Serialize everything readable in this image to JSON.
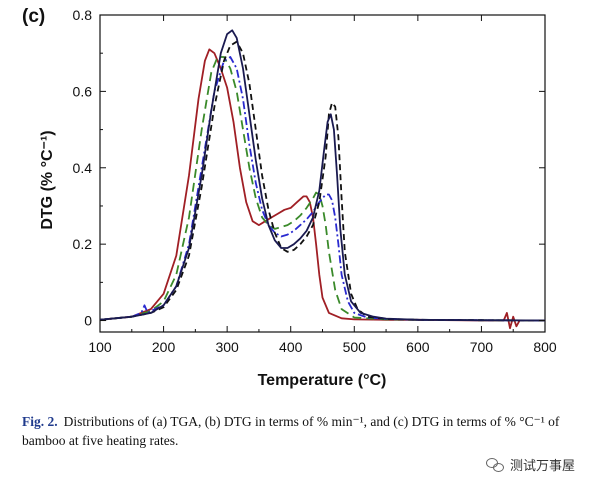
{
  "panel_label": "(c)",
  "caption": {
    "label": "Fig. 2.",
    "text": "Distributions of (a) TGA, (b) DTG in terms of % min⁻¹, and (c) DTG in terms of % °C⁻¹ of bamboo at five heating rates."
  },
  "watermark": "测试万事屋",
  "colors": {
    "series": [
      "#a01f25",
      "#3a8a2a",
      "#2a2ad0",
      "#111111",
      "#1a1a50"
    ]
  },
  "chart_data": {
    "type": "line",
    "title": "",
    "xlabel": "Temperature (°C)",
    "ylabel": "DTG (% °C⁻¹)",
    "xlim": [
      100,
      800
    ],
    "ylim": [
      -0.03,
      0.8
    ],
    "xticks": [
      100,
      200,
      300,
      400,
      500,
      600,
      700,
      800
    ],
    "yticks": [
      0,
      0.2,
      0.4,
      0.6,
      0.8
    ],
    "ytick_labels": [
      "0",
      "0.2",
      "0.4",
      "0.6",
      "0.8"
    ],
    "grid": false,
    "legend": "none",
    "series": [
      {
        "style": "solid",
        "color": "#a01f25",
        "x": [
          100,
          150,
          180,
          200,
          220,
          240,
          255,
          265,
          272,
          280,
          290,
          300,
          310,
          320,
          330,
          340,
          350,
          360,
          370,
          380,
          390,
          400,
          410,
          420,
          425,
          430,
          435,
          440,
          445,
          450,
          460,
          480,
          500,
          550,
          600,
          700,
          735,
          740,
          745,
          750,
          755,
          760,
          800
        ],
        "y": [
          0.002,
          0.01,
          0.03,
          0.07,
          0.17,
          0.38,
          0.58,
          0.68,
          0.71,
          0.7,
          0.66,
          0.61,
          0.52,
          0.4,
          0.31,
          0.26,
          0.25,
          0.26,
          0.27,
          0.28,
          0.29,
          0.295,
          0.31,
          0.325,
          0.325,
          0.31,
          0.27,
          0.2,
          0.12,
          0.06,
          0.02,
          0.006,
          0.003,
          0.002,
          0.002,
          0.0,
          0.0,
          0.02,
          -0.02,
          0.01,
          -0.015,
          0.0,
          0.0
        ]
      },
      {
        "style": "longdash",
        "color": "#3a8a2a",
        "x": [
          100,
          150,
          180,
          200,
          220,
          240,
          260,
          275,
          285,
          295,
          305,
          315,
          325,
          335,
          345,
          355,
          365,
          375,
          385,
          395,
          405,
          415,
          425,
          435,
          440,
          445,
          450,
          455,
          460,
          470,
          480,
          500,
          550,
          600,
          700,
          800
        ],
        "y": [
          0.002,
          0.01,
          0.025,
          0.05,
          0.12,
          0.27,
          0.5,
          0.65,
          0.69,
          0.69,
          0.66,
          0.6,
          0.5,
          0.4,
          0.32,
          0.27,
          0.25,
          0.24,
          0.245,
          0.25,
          0.26,
          0.275,
          0.295,
          0.32,
          0.335,
          0.33,
          0.3,
          0.25,
          0.18,
          0.08,
          0.03,
          0.008,
          0.003,
          0.002,
          0.001,
          0.0
        ]
      },
      {
        "style": "dashdot",
        "color": "#2a2ad0",
        "x": [
          100,
          150,
          165,
          170,
          175,
          180,
          200,
          220,
          240,
          260,
          280,
          295,
          305,
          315,
          325,
          335,
          345,
          355,
          365,
          375,
          385,
          395,
          405,
          415,
          425,
          435,
          445,
          455,
          460,
          465,
          470,
          475,
          480,
          490,
          500,
          520,
          550,
          600,
          700,
          800
        ],
        "y": [
          0.002,
          0.01,
          0.02,
          0.04,
          0.02,
          0.025,
          0.04,
          0.09,
          0.2,
          0.4,
          0.6,
          0.68,
          0.69,
          0.66,
          0.58,
          0.46,
          0.36,
          0.29,
          0.25,
          0.23,
          0.22,
          0.225,
          0.235,
          0.25,
          0.265,
          0.285,
          0.31,
          0.33,
          0.33,
          0.315,
          0.27,
          0.2,
          0.12,
          0.05,
          0.02,
          0.008,
          0.004,
          0.002,
          0.001,
          0.0
        ]
      },
      {
        "style": "shortdash",
        "color": "#111111",
        "x": [
          100,
          150,
          180,
          200,
          220,
          240,
          260,
          280,
          295,
          305,
          315,
          325,
          335,
          345,
          355,
          365,
          375,
          385,
          395,
          405,
          415,
          425,
          435,
          445,
          455,
          460,
          465,
          470,
          475,
          480,
          485,
          495,
          505,
          520,
          550,
          600,
          700,
          800
        ],
        "y": [
          0.002,
          0.01,
          0.02,
          0.035,
          0.08,
          0.17,
          0.35,
          0.56,
          0.68,
          0.72,
          0.73,
          0.7,
          0.62,
          0.5,
          0.38,
          0.29,
          0.23,
          0.19,
          0.18,
          0.185,
          0.2,
          0.22,
          0.25,
          0.31,
          0.43,
          0.54,
          0.57,
          0.56,
          0.48,
          0.32,
          0.18,
          0.07,
          0.03,
          0.01,
          0.004,
          0.002,
          0.001,
          0.0
        ]
      },
      {
        "style": "solid",
        "color": "#1a1a50",
        "x": [
          100,
          150,
          180,
          200,
          220,
          240,
          260,
          275,
          290,
          300,
          308,
          315,
          325,
          335,
          345,
          355,
          365,
          375,
          385,
          395,
          405,
          415,
          425,
          435,
          445,
          452,
          458,
          463,
          468,
          473,
          478,
          485,
          495,
          510,
          530,
          550,
          600,
          700,
          800
        ],
        "y": [
          0.002,
          0.01,
          0.02,
          0.04,
          0.09,
          0.19,
          0.38,
          0.55,
          0.7,
          0.75,
          0.76,
          0.74,
          0.66,
          0.54,
          0.42,
          0.32,
          0.25,
          0.21,
          0.19,
          0.19,
          0.2,
          0.215,
          0.235,
          0.27,
          0.34,
          0.44,
          0.52,
          0.54,
          0.5,
          0.38,
          0.24,
          0.12,
          0.05,
          0.02,
          0.01,
          0.005,
          0.002,
          0.001,
          0.0
        ]
      }
    ]
  }
}
